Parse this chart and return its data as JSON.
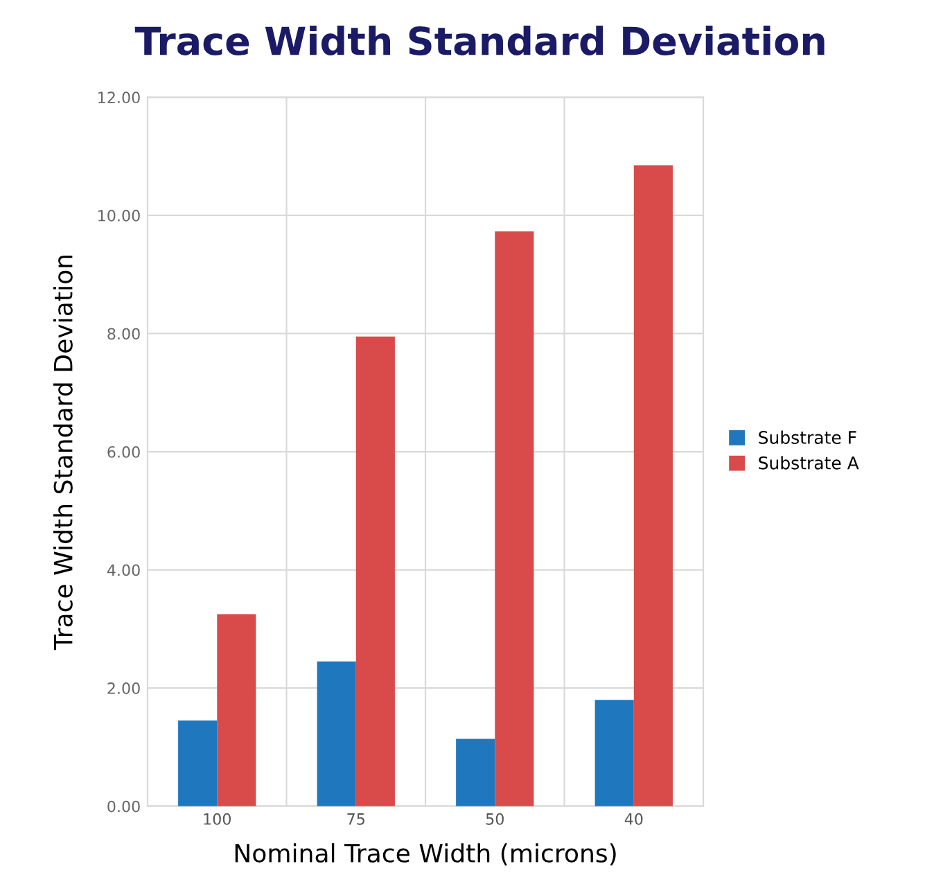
{
  "chart_data": {
    "type": "bar",
    "title": "Trace Width Standard Deviation",
    "xlabel": "Nominal Trace Width (microns)",
    "ylabel": "Trace Width Standard Deviation",
    "categories": [
      "100",
      "75",
      "50",
      "40"
    ],
    "series": [
      {
        "name": "Substrate F",
        "color": "#1f77bd",
        "values": [
          1.45,
          2.45,
          1.14,
          1.8
        ]
      },
      {
        "name": "Substrate A",
        "color": "#d94a4a",
        "values": [
          3.25,
          7.95,
          9.73,
          10.85
        ]
      }
    ],
    "ylim": [
      0,
      12
    ],
    "yticks": [
      {
        "value": 0,
        "label": "0.00"
      },
      {
        "value": 2,
        "label": "2.00"
      },
      {
        "value": 4,
        "label": "4.00"
      },
      {
        "value": 6,
        "label": "6.00"
      },
      {
        "value": 8,
        "label": "8.00"
      },
      {
        "value": 10,
        "label": "10.00"
      },
      {
        "value": 12,
        "label": "12.00"
      }
    ],
    "grid": true,
    "legend": "right"
  }
}
